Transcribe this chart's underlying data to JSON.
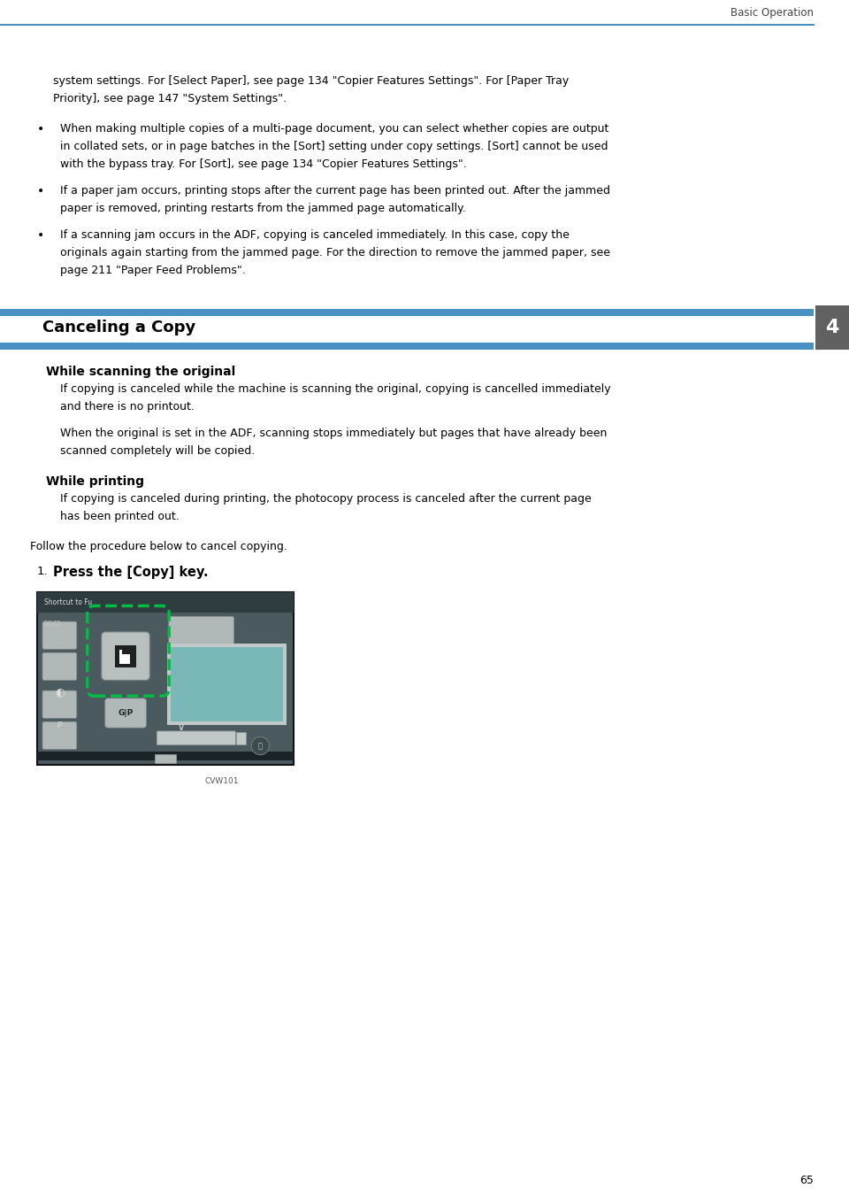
{
  "page_bg": "#ffffff",
  "header_text": "Basic Operation",
  "header_line_color": "#4a90c4",
  "page_number": "65",
  "chapter_number": "4",
  "chapter_tab_color": "#616161",
  "section_bar_color": "#4a90c4",
  "body_text_color": "#000000",
  "top_indent_text": "system settings. For [Select Paper], see page 134 \"Copier Features Settings\". For [Paper Tray\nPriority], see page 147 \"System Settings\".",
  "bullet_items": [
    "When making multiple copies of a multi-page document, you can select whether copies are output\nin collated sets, or in page batches in the [Sort] setting under copy settings. [Sort] cannot be used\nwith the bypass tray. For [Sort], see page 134 \"Copier Features Settings\".",
    "If a paper jam occurs, printing stops after the current page has been printed out. After the jammed\npaper is removed, printing restarts from the jammed page automatically.",
    "If a scanning jam occurs in the ADF, copying is canceled immediately. In this case, copy the\noriginals again starting from the jammed page. For the direction to remove the jammed paper, see\npage 211 \"Paper Feed Problems\"."
  ],
  "section_title": "Canceling a Copy",
  "sub_sections": [
    {
      "heading": "While scanning the original",
      "paragraphs": [
        "If copying is canceled while the machine is scanning the original, copying is cancelled immediately\nand there is no printout.",
        "When the original is set in the ADF, scanning stops immediately but pages that have already been\nscanned completely will be copied."
      ]
    },
    {
      "heading": "While printing",
      "paragraphs": [
        "If copying is canceled during printing, the photocopy process is canceled after the current page\nhas been printed out."
      ]
    }
  ],
  "follow_text": "Follow the procedure below to cancel copying.",
  "step_text": "Press the [Copy] key.",
  "caption": "CVW101",
  "panel_bg": "#4a5a5e",
  "panel_dark": "#2e3c40",
  "panel_top_bar": "#2e3c40",
  "btn_color": "#8a9a9e",
  "btn_dark": "#3a4a4e",
  "screen_color": "#7ab8b8",
  "screen_frame": "#c8d0d0",
  "green_dashes": "#00bb44",
  "copy_btn_bg": "#c8c8c8",
  "copy_btn_inner": "#202020"
}
